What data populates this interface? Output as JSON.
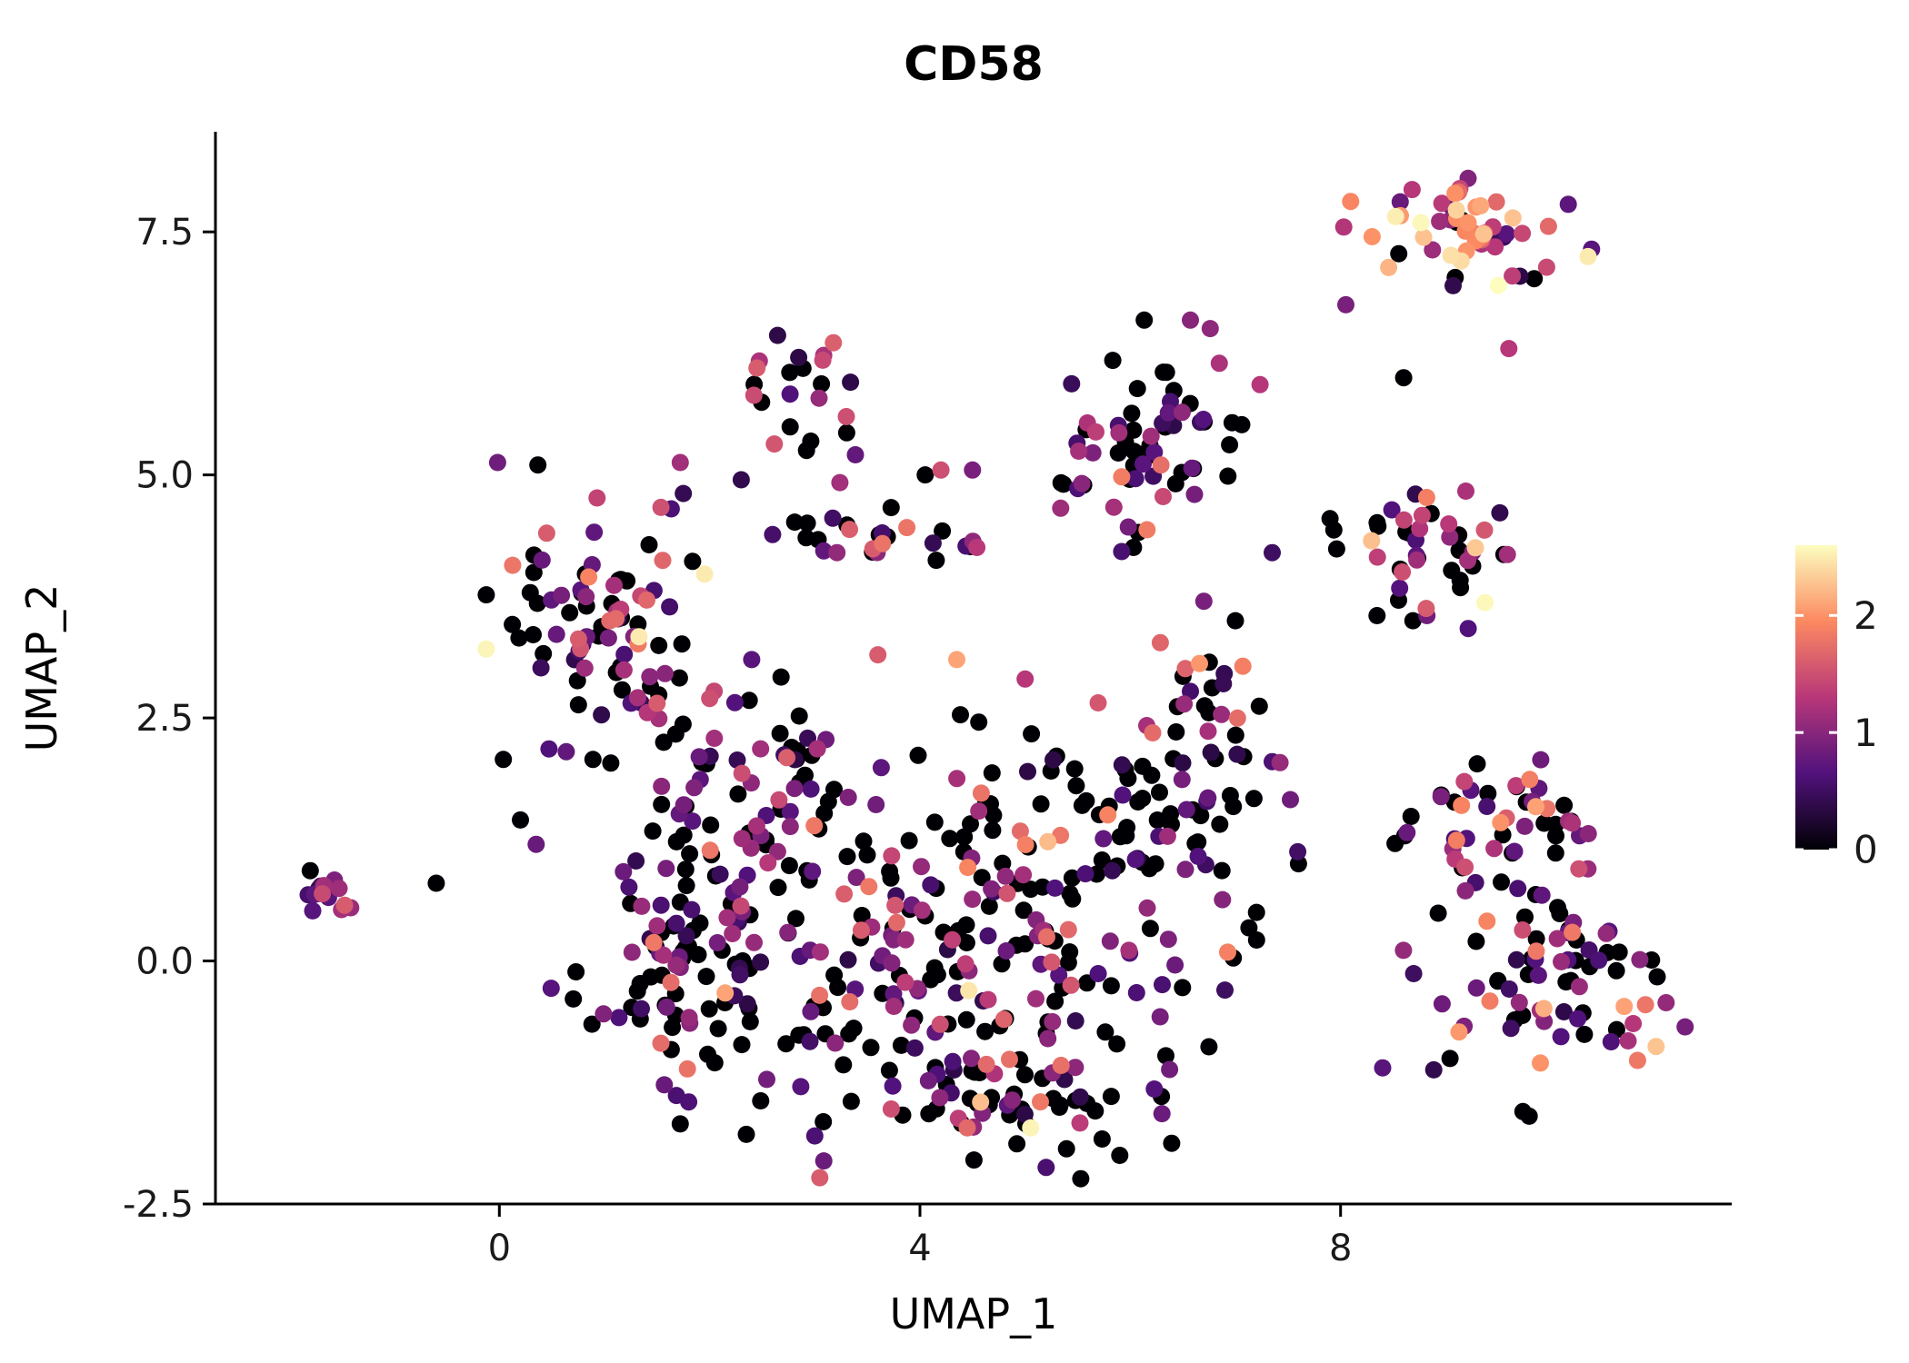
{
  "title": "CD58",
  "axes": {
    "x_label": "UMAP_1",
    "y_label": "UMAP_2",
    "x_tick_values": [
      0,
      4,
      8
    ],
    "x_tick_labels": [
      "0",
      "4",
      "8"
    ],
    "y_tick_values": [
      -2.5,
      0.0,
      2.5,
      5.0,
      7.5
    ],
    "y_tick_labels": [
      "-2.5",
      "0.0",
      "2.5",
      "5.0",
      "7.5"
    ]
  },
  "legend": {
    "tick_values": [
      0,
      1,
      2
    ],
    "tick_labels": [
      "0",
      "1",
      "2"
    ]
  },
  "chart_data": {
    "type": "scatter",
    "title": "CD58",
    "xlabel": "UMAP_1",
    "ylabel": "UMAP_2",
    "xlim": [
      -2.7,
      11.72
    ],
    "ylim": [
      -2.5,
      8.53
    ],
    "grid": false,
    "legend_position": "right",
    "color_scale": {
      "name": "magma",
      "min": 0,
      "max": 2.6,
      "legend_ticks": [
        0,
        1,
        2
      ],
      "stops": [
        "#000004",
        "#51127c",
        "#b73779",
        "#fc8961",
        "#fcfdbf"
      ]
    },
    "point_radius_px": 9.5,
    "value_bands": [
      [
        0,
        0
      ],
      [
        0.35,
        1.2
      ],
      [
        1.2,
        1.9
      ],
      [
        1.9,
        2.6
      ]
    ],
    "clusters": [
      {
        "name": "top-right-high-expression",
        "cx": 9.3,
        "cy": 7.6,
        "sx": 0.55,
        "sy": 0.28,
        "n": 55,
        "mix": [
          0.12,
          0.18,
          0.32,
          0.38
        ]
      },
      {
        "name": "small-top-mid",
        "cx": 2.85,
        "cy": 5.7,
        "sx": 0.3,
        "sy": 0.35,
        "n": 22,
        "mix": [
          0.45,
          0.4,
          0.15,
          0.0
        ]
      },
      {
        "name": "mid-upper",
        "cx": 6.15,
        "cy": 5.3,
        "sx": 0.5,
        "sy": 0.55,
        "n": 70,
        "mix": [
          0.45,
          0.4,
          0.12,
          0.03
        ]
      },
      {
        "name": "right-mid",
        "cx": 8.9,
        "cy": 4.3,
        "sx": 0.45,
        "sy": 0.4,
        "n": 45,
        "mix": [
          0.35,
          0.35,
          0.25,
          0.05
        ]
      },
      {
        "name": "left-cluster",
        "cx": 1.05,
        "cy": 3.6,
        "sx": 0.5,
        "sy": 0.65,
        "n": 85,
        "mix": [
          0.4,
          0.4,
          0.18,
          0.02
        ]
      },
      {
        "name": "far-left-tight",
        "cx": -1.6,
        "cy": 0.7,
        "sx": 0.17,
        "sy": 0.1,
        "n": 16,
        "mix": [
          0.3,
          0.6,
          0.1,
          0.0
        ]
      },
      {
        "name": "horizontal-band",
        "cx": 3.6,
        "cy": 4.35,
        "sx": 1.0,
        "sy": 0.15,
        "n": 26,
        "mix": [
          0.55,
          0.3,
          0.15,
          0.0
        ]
      },
      {
        "name": "central-a",
        "cx": 2.1,
        "cy": 0.9,
        "sx": 0.6,
        "sy": 0.9,
        "n": 85,
        "mix": [
          0.5,
          0.4,
          0.09,
          0.01
        ]
      },
      {
        "name": "central-b",
        "cx": 3.6,
        "cy": 0.0,
        "sx": 0.8,
        "sy": 0.9,
        "n": 110,
        "mix": [
          0.5,
          0.38,
          0.11,
          0.01
        ]
      },
      {
        "name": "central-c",
        "cx": 5.1,
        "cy": 0.3,
        "sx": 0.8,
        "sy": 0.95,
        "n": 120,
        "mix": [
          0.48,
          0.38,
          0.12,
          0.02
        ]
      },
      {
        "name": "central-d",
        "cx": 6.3,
        "cy": 1.5,
        "sx": 0.55,
        "sy": 0.6,
        "n": 55,
        "mix": [
          0.45,
          0.35,
          0.15,
          0.05
        ]
      },
      {
        "name": "central-bottom",
        "cx": 4.6,
        "cy": -1.3,
        "sx": 0.9,
        "sy": 0.4,
        "n": 60,
        "mix": [
          0.5,
          0.38,
          0.1,
          0.02
        ]
      },
      {
        "name": "central-f",
        "cx": 2.6,
        "cy": 2.0,
        "sx": 0.45,
        "sy": 0.4,
        "n": 28,
        "mix": [
          0.45,
          0.45,
          0.1,
          0.0
        ]
      },
      {
        "name": "central-g",
        "cx": 1.55,
        "cy": -0.35,
        "sx": 0.45,
        "sy": 0.55,
        "n": 40,
        "mix": [
          0.5,
          0.4,
          0.1,
          0.0
        ]
      },
      {
        "name": "central-h",
        "cx": 6.7,
        "cy": 2.6,
        "sx": 0.35,
        "sy": 0.4,
        "n": 20,
        "mix": [
          0.4,
          0.35,
          0.2,
          0.05
        ]
      },
      {
        "name": "right-upper-lobe",
        "cx": 9.6,
        "cy": 1.3,
        "sx": 0.6,
        "sy": 0.45,
        "n": 50,
        "mix": [
          0.42,
          0.38,
          0.16,
          0.04
        ]
      },
      {
        "name": "right-lower-lobe",
        "cx": 10.1,
        "cy": -0.3,
        "sx": 0.65,
        "sy": 0.6,
        "n": 75,
        "mix": [
          0.42,
          0.38,
          0.16,
          0.04
        ]
      }
    ],
    "extra_points": [
      [
        -0.6,
        0.8,
        0
      ],
      [
        0.2,
        1.45,
        0
      ],
      [
        0.35,
        1.2,
        0.8
      ],
      [
        7.35,
        2.05,
        0.6
      ],
      [
        7.6,
        1.0,
        0
      ],
      [
        7.9,
        4.55,
        0
      ],
      [
        7.35,
        4.2,
        0.5
      ],
      [
        7.0,
        3.5,
        0
      ],
      [
        6.7,
        3.7,
        0.9
      ],
      [
        2.4,
        3.1,
        0.7
      ],
      [
        2.0,
        2.7,
        1.5
      ],
      [
        4.35,
        3.1,
        2.1
      ],
      [
        3.6,
        3.15,
        1.6
      ],
      [
        4.2,
        5.05,
        1.5
      ],
      [
        4.5,
        5.05,
        0.9
      ],
      [
        4.05,
        5.0,
        0
      ],
      [
        5.0,
        2.9,
        1.3
      ],
      [
        8.6,
        6.0,
        0
      ],
      [
        2.3,
        4.95,
        0.4
      ],
      [
        1.9,
        2.1,
        0.8
      ],
      [
        7.2,
        0.5,
        0
      ],
      [
        6.9,
        -0.3,
        0.5
      ],
      [
        5.9,
        -2.0,
        0
      ],
      [
        3.0,
        -1.8,
        0.6
      ],
      [
        8.4,
        -1.1,
        0.7
      ],
      [
        9.9,
        -1.05,
        2.0
      ],
      [
        10.9,
        -0.45,
        1.8
      ],
      [
        9.15,
        1.6,
        1.9
      ],
      [
        0.45,
        4.4,
        1.6
      ],
      [
        0.85,
        3.95,
        1.9
      ],
      [
        1.05,
        3.5,
        1.7
      ],
      [
        1.5,
        2.65,
        1.6
      ],
      [
        8.05,
        6.75,
        0.9
      ],
      [
        9.5,
        6.95,
        2.6
      ],
      [
        9.6,
        6.3,
        1.3
      ],
      [
        8.3,
        7.45,
        2.0
      ],
      [
        2.45,
        6.1,
        1.6
      ],
      [
        3.3,
        5.6,
        1.5
      ]
    ]
  }
}
